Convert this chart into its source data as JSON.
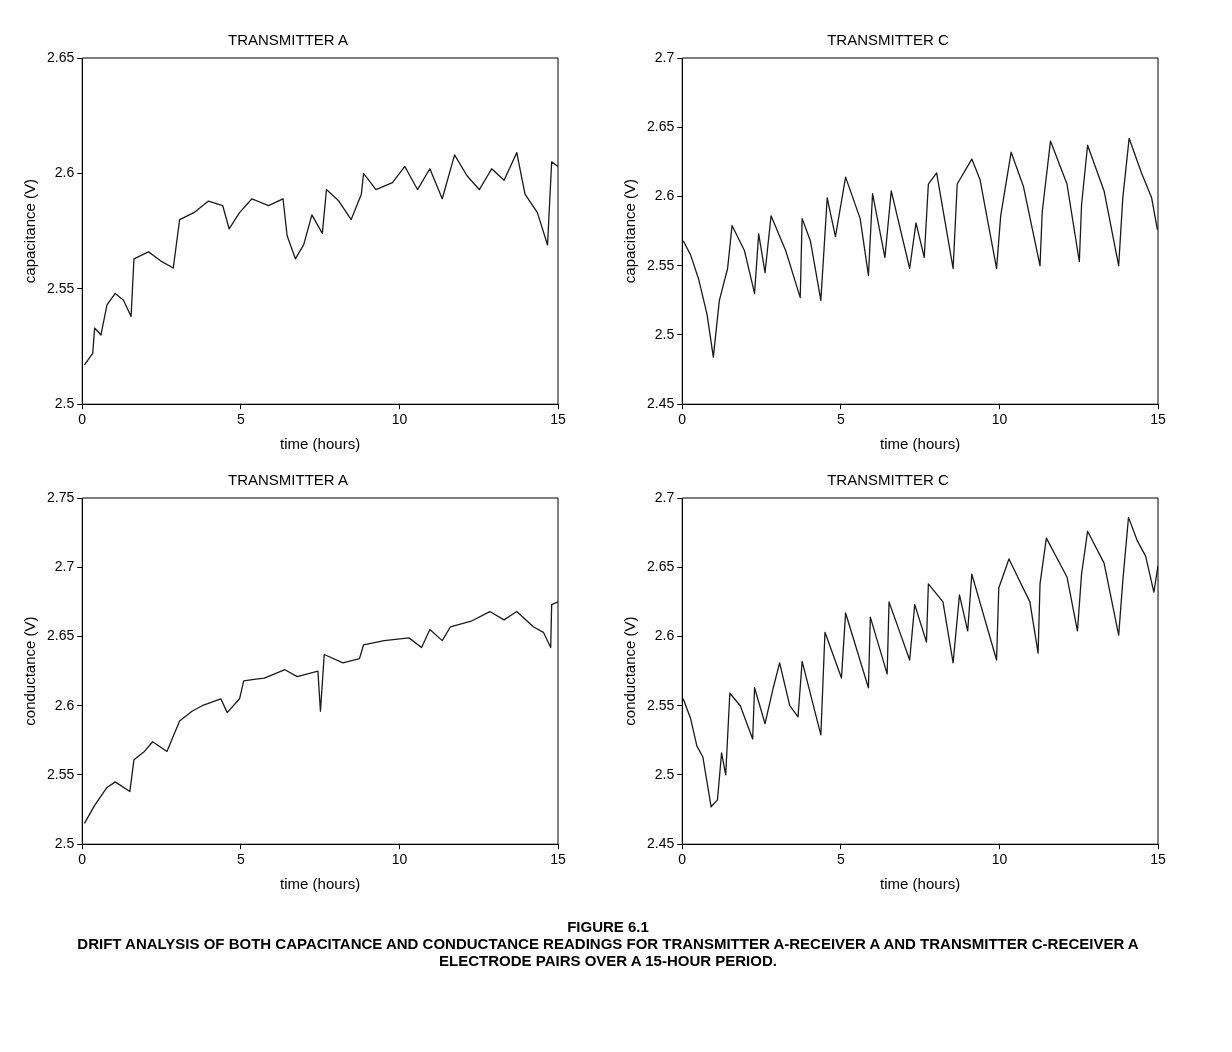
{
  "chart_data": [
    {
      "type": "line",
      "title": "TRANSMITTER A",
      "xlabel": "time (hours)",
      "ylabel": "capacitance (V)",
      "color": "#1a1a1a",
      "xlim": [
        0,
        15
      ],
      "ylim": [
        2.5,
        2.65
      ],
      "xticks": [
        0,
        5,
        10,
        15
      ],
      "yticks": [
        2.5,
        2.55,
        2.6,
        2.65
      ],
      "grid": false,
      "legend": false,
      "x": [
        0.07,
        0.33,
        0.39,
        0.59,
        0.78,
        1.04,
        1.3,
        1.54,
        1.63,
        2.09,
        2.48,
        2.87,
        3.07,
        3.52,
        3.98,
        4.43,
        4.63,
        4.96,
        5.35,
        5.87,
        6.33,
        6.46,
        6.72,
        6.98,
        7.24,
        7.57,
        7.7,
        8.09,
        8.48,
        8.8,
        8.87,
        9.26,
        9.78,
        10.17,
        10.57,
        10.96,
        11.35,
        11.74,
        12.13,
        12.52,
        12.91,
        13.3,
        13.7,
        13.96,
        14.35,
        14.67,
        14.8,
        15
      ],
      "values": [
        2.517,
        2.522,
        2.533,
        2.53,
        2.543,
        2.548,
        2.545,
        2.538,
        2.563,
        2.566,
        2.562,
        2.559,
        2.58,
        2.583,
        2.588,
        2.586,
        2.576,
        2.583,
        2.589,
        2.586,
        2.589,
        2.573,
        2.563,
        2.569,
        2.582,
        2.574,
        2.593,
        2.588,
        2.58,
        2.591,
        2.6,
        2.593,
        2.596,
        2.603,
        2.593,
        2.602,
        2.589,
        2.608,
        2.599,
        2.593,
        2.602,
        2.597,
        2.609,
        2.591,
        2.583,
        2.569,
        2.605,
        2.603
      ]
    },
    {
      "type": "line",
      "title": "TRANSMITTER C",
      "xlabel": "time (hours)",
      "ylabel": "capacitance (V)",
      "color": "#1a1a1a",
      "xlim": [
        0,
        15
      ],
      "ylim": [
        2.45,
        2.7
      ],
      "xticks": [
        0,
        5,
        10,
        15
      ],
      "yticks": [
        2.45,
        2.5,
        2.55,
        2.6,
        2.65,
        2.7
      ],
      "grid": false,
      "legend": false,
      "x": [
        0.03,
        0.26,
        0.52,
        0.78,
        0.98,
        1.17,
        1.43,
        1.57,
        1.96,
        2.28,
        2.41,
        2.61,
        2.8,
        3.26,
        3.72,
        3.78,
        4.04,
        4.37,
        4.57,
        4.83,
        5.15,
        5.61,
        5.87,
        6.0,
        6.39,
        6.59,
        7.17,
        7.37,
        7.63,
        7.76,
        8.02,
        8.54,
        8.67,
        9.13,
        9.39,
        9.91,
        10.04,
        10.37,
        10.76,
        11.28,
        11.35,
        11.61,
        12.13,
        12.52,
        12.59,
        12.78,
        13.3,
        13.76,
        13.89,
        14.09,
        14.48,
        14.8,
        14.98
      ],
      "values": [
        2.568,
        2.558,
        2.54,
        2.515,
        2.484,
        2.525,
        2.548,
        2.579,
        2.561,
        2.53,
        2.573,
        2.545,
        2.586,
        2.561,
        2.527,
        2.584,
        2.568,
        2.525,
        2.599,
        2.571,
        2.614,
        2.584,
        2.543,
        2.602,
        2.556,
        2.604,
        2.548,
        2.581,
        2.556,
        2.609,
        2.617,
        2.548,
        2.609,
        2.627,
        2.612,
        2.548,
        2.586,
        2.632,
        2.607,
        2.55,
        2.589,
        2.64,
        2.609,
        2.553,
        2.594,
        2.637,
        2.604,
        2.55,
        2.599,
        2.642,
        2.617,
        2.599,
        2.576
      ]
    },
    {
      "type": "line",
      "title": "TRANSMITTER A",
      "xlabel": "time (hours)",
      "ylabel": "conductance (V)",
      "color": "#1a1a1a",
      "xlim": [
        0,
        15
      ],
      "ylim": [
        2.5,
        2.75
      ],
      "xticks": [
        0,
        5,
        10,
        15
      ],
      "yticks": [
        2.5,
        2.55,
        2.6,
        2.65,
        2.7,
        2.75
      ],
      "grid": false,
      "legend": false,
      "x": [
        0.07,
        0.39,
        0.78,
        1.04,
        1.5,
        1.63,
        1.96,
        2.22,
        2.67,
        3.07,
        3.46,
        3.78,
        4.37,
        4.57,
        4.96,
        5.09,
        5.74,
        6.39,
        6.78,
        7.43,
        7.51,
        7.63,
        8.22,
        8.74,
        8.87,
        9.52,
        10.3,
        10.7,
        10.96,
        11.35,
        11.61,
        12.26,
        12.85,
        13.3,
        13.7,
        14.22,
        14.54,
        14.77,
        14.8,
        15
      ],
      "values": [
        2.515,
        2.528,
        2.541,
        2.545,
        2.538,
        2.561,
        2.567,
        2.574,
        2.567,
        2.589,
        2.596,
        2.6,
        2.605,
        2.595,
        2.605,
        2.618,
        2.62,
        2.626,
        2.621,
        2.625,
        2.596,
        2.637,
        2.631,
        2.634,
        2.644,
        2.647,
        2.649,
        2.642,
        2.655,
        2.647,
        2.657,
        2.661,
        2.668,
        2.662,
        2.668,
        2.657,
        2.653,
        2.642,
        2.673,
        2.675
      ]
    },
    {
      "type": "line",
      "title": "TRANSMITTER C",
      "xlabel": "time (hours)",
      "ylabel": "conductance (V)",
      "color": "#1a1a1a",
      "xlim": [
        0,
        15
      ],
      "ylim": [
        2.45,
        2.7
      ],
      "xticks": [
        0,
        5,
        10,
        15
      ],
      "yticks": [
        2.45,
        2.5,
        2.55,
        2.6,
        2.65,
        2.7
      ],
      "grid": false,
      "legend": false,
      "x": [
        0.03,
        0.26,
        0.46,
        0.65,
        0.91,
        1.11,
        1.24,
        1.37,
        1.5,
        1.83,
        2.22,
        2.28,
        2.61,
        2.87,
        3.07,
        3.39,
        3.65,
        3.78,
        4.37,
        4.5,
        5.02,
        5.15,
        5.87,
        5.93,
        6.46,
        6.52,
        7.17,
        7.33,
        7.7,
        7.76,
        8.22,
        8.54,
        8.74,
        9.0,
        9.13,
        9.91,
        9.98,
        10.3,
        10.96,
        11.22,
        11.28,
        11.48,
        12.13,
        12.46,
        12.59,
        12.78,
        13.3,
        13.76,
        13.89,
        14.07,
        14.35,
        14.61,
        14.87,
        15
      ],
      "values": [
        2.555,
        2.541,
        2.521,
        2.513,
        2.477,
        2.482,
        2.516,
        2.5,
        2.559,
        2.55,
        2.526,
        2.563,
        2.537,
        2.563,
        2.581,
        2.55,
        2.542,
        2.582,
        2.529,
        2.603,
        2.57,
        2.617,
        2.563,
        2.614,
        2.573,
        2.625,
        2.583,
        2.623,
        2.596,
        2.638,
        2.625,
        2.581,
        2.63,
        2.604,
        2.645,
        2.583,
        2.635,
        2.656,
        2.625,
        2.588,
        2.638,
        2.671,
        2.643,
        2.604,
        2.645,
        2.676,
        2.653,
        2.601,
        2.64,
        2.686,
        2.669,
        2.658,
        2.632,
        2.651
      ],
      "annotations": [
        "FIGURE 6.1",
        "DRIFT ANALYSIS OF BOTH CAPACITANCE AND CONDUCTANCE READINGS FOR TRANSMITTER A-RECEIVER A AND TRANSMITTER C-RECEIVER A ELECTRODE PAIRS OVER A 15-HOUR PERIOD."
      ]
    }
  ]
}
